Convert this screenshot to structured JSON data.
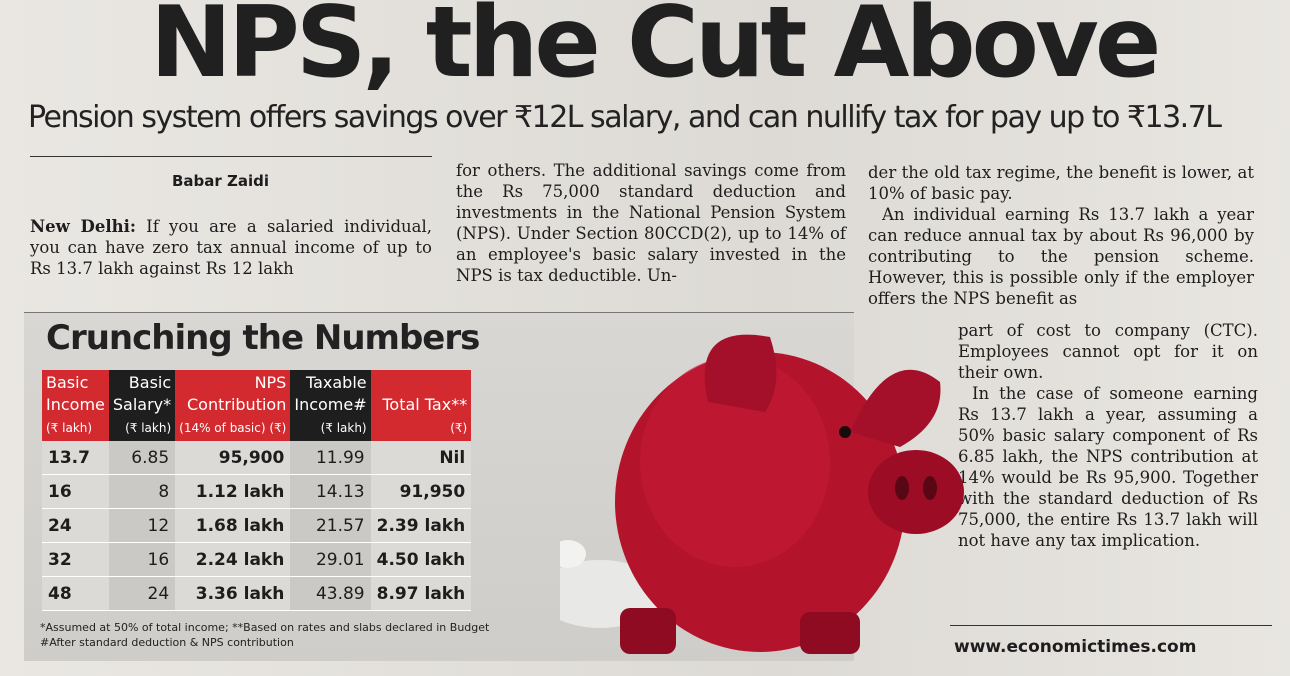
{
  "headline": "NPS, the Cut Above",
  "subheadline": "Pension system offers savings over ₹12L salary, and can nullify tax for pay up to ₹13.7L",
  "byline": "Babar Zaidi",
  "article": {
    "col1_dateline": "New Delhi:",
    "col1_text": " If you are a salaried individual, you can have zero tax annual income of up to Rs 13.7 lakh against Rs 12 lakh",
    "col2_text": "for others. The additional savings come from the Rs 75,000 standard deduction and investments in the National Pension System (NPS). Under Section 80CCD(2), up to 14% of an employee's basic salary invested in the NPS is tax deductible. Un-",
    "col3_p1": "der the old tax regime, the benefit is lower, at 10% of basic pay.",
    "col3_p2": "An individual earning Rs 13.7 lakh a year can reduce annual tax by about Rs 96,000 by contributing to the pension scheme. However, this is possible only if the employer offers the NPS benefit as",
    "col3_p3": "part of cost to company (CTC). Employees cannot opt for it on their own.",
    "col3_p4": "In the case of someone earning Rs 13.7 lakh a year, assuming a 50% basic salary component of Rs 6.85 lakh, the NPS contribution at 14% would be Rs 95,900. Together with the standard deduction of Rs 75,000, the entire Rs 13.7 lakh will not have any tax implication."
  },
  "graphic": {
    "title": "Crunching the Numbers",
    "headers": [
      {
        "line1": "Basic",
        "line2": "Income",
        "unit": "(₹ lakh)"
      },
      {
        "line1": "Basic",
        "line2": "Salary*",
        "unit": "(₹ lakh)"
      },
      {
        "line1": "NPS",
        "line2": "Contribution",
        "unit": "(14% of basic) (₹)"
      },
      {
        "line1": "Taxable",
        "line2": "Income#",
        "unit": "(₹ lakh)"
      },
      {
        "line1": "",
        "line2": "Total Tax**",
        "unit": "(₹)"
      }
    ],
    "rows": [
      [
        "13.7",
        "6.85",
        "95,900",
        "11.99",
        "Nil"
      ],
      [
        "16",
        "8",
        "1.12 lakh",
        "14.13",
        "91,950"
      ],
      [
        "24",
        "12",
        "1.68 lakh",
        "21.57",
        "2.39 lakh"
      ],
      [
        "32",
        "16",
        "2.24 lakh",
        "29.01",
        "4.50 lakh"
      ],
      [
        "48",
        "24",
        "3.36 lakh",
        "43.89",
        "8.97 lakh"
      ]
    ],
    "footnote1": "*Assumed at 50% of total income; **Based on rates and slabs declared in Budget",
    "footnote2": "#After standard deduction & NPS contribution"
  },
  "website": "www.economictimes.com",
  "colors": {
    "red": "#d32a2f",
    "black": "#1e1e1e",
    "pig": "#b3132b"
  }
}
